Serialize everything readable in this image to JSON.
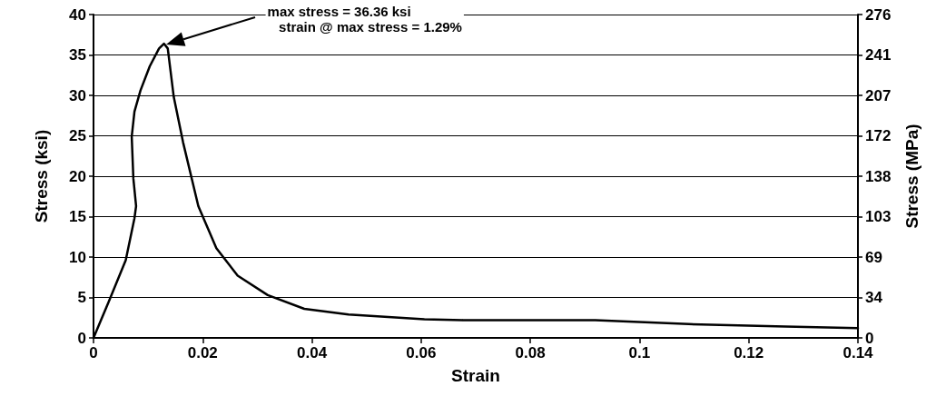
{
  "chart_data": {
    "type": "line",
    "xlabel": "Strain",
    "ylabel": "Stress (ksi)",
    "y2label": "Stress (MPa)",
    "x": [
      0,
      0.0028,
      0.0059,
      0.0075,
      0.0078,
      0.0073,
      0.007,
      0.0075,
      0.0086,
      0.0103,
      0.012,
      0.0129,
      0.0136,
      0.0147,
      0.0164,
      0.0192,
      0.0225,
      0.0264,
      0.0319,
      0.0386,
      0.0467,
      0.0606,
      0.0677,
      0.0919,
      0.109,
      0.1267,
      0.14
    ],
    "series": [
      {
        "color": "#000000",
        "values": [
          0,
          4.5,
          9.6,
          14.8,
          16.3,
          19.7,
          24.9,
          28,
          30.6,
          33.6,
          35.8,
          36.4,
          35.8,
          29.8,
          24.2,
          16.3,
          11.1,
          7.7,
          5.3,
          3.6,
          2.9,
          2.3,
          2.2,
          2.2,
          1.7,
          1.4,
          1.2
        ]
      }
    ],
    "xlim": [
      0,
      0.14
    ],
    "xticks": [
      0,
      0.02,
      0.04,
      0.06,
      0.08,
      0.1,
      0.12,
      0.14
    ],
    "ylim": [
      0,
      40
    ],
    "yticks": [
      0,
      5,
      10,
      15,
      20,
      25,
      30,
      35,
      40
    ],
    "y2lim": [
      0,
      275.8
    ],
    "y2ticks": [
      0,
      {
        "value": 34.47,
        "label": "34"
      },
      {
        "value": 68.95,
        "label": "69"
      },
      {
        "value": 103.4,
        "label": "103"
      },
      {
        "value": 137.9,
        "label": "138"
      },
      {
        "value": 172.4,
        "label": "172"
      },
      {
        "value": 206.8,
        "label": "207"
      },
      {
        "value": 241.3,
        "label": "241"
      },
      {
        "value": 275.8,
        "label": "276"
      }
    ],
    "annotations": [
      "max stress = 36.36 ksi\n   strain @ max stress = 1.29%"
    ],
    "grid": "y",
    "marker": "none",
    "line_style": "solid"
  }
}
